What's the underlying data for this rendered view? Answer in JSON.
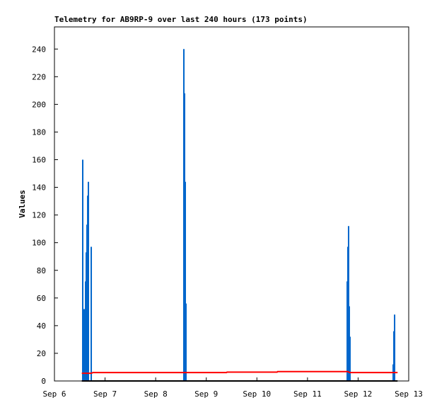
{
  "chart_data": {
    "type": "line",
    "title": "Telemetry for AB9RP-9 over last 240 hours (173 points)",
    "ylabel": "Values",
    "xlim": [
      6,
      13
    ],
    "xticks": [
      {
        "value": 6,
        "label": "Sep 6"
      },
      {
        "value": 7,
        "label": "Sep 7"
      },
      {
        "value": 8,
        "label": "Sep 8"
      },
      {
        "value": 9,
        "label": "Sep 9"
      },
      {
        "value": 10,
        "label": "Sep 10"
      },
      {
        "value": 11,
        "label": "Sep 11"
      },
      {
        "value": 12,
        "label": "Sep 12"
      },
      {
        "value": 13,
        "label": "Sep 13"
      }
    ],
    "ylim": [
      0,
      256
    ],
    "yticks": [
      0,
      20,
      40,
      60,
      80,
      100,
      120,
      140,
      160,
      180,
      200,
      220,
      240
    ],
    "series": [
      {
        "color": "#0066cc",
        "style": "impulse",
        "x": [
          6.559,
          6.573,
          6.587,
          6.615,
          6.629,
          6.643,
          6.657,
          6.671,
          6.727,
          8.557,
          8.571,
          8.585,
          8.599,
          11.785,
          11.798,
          11.812,
          11.826,
          11.84,
          12.693,
          12.707,
          12.721
        ],
        "values": [
          160,
          31,
          52,
          72,
          93,
          113,
          134,
          144,
          97,
          240,
          208,
          144,
          56,
          72,
          97,
          112,
          54,
          32,
          12,
          36,
          48
        ]
      },
      {
        "color": "#ff0000",
        "style": "line",
        "x": [
          6.54,
          6.73,
          6.76,
          9.4,
          9.41,
          10.4,
          10.41,
          11.8,
          11.83,
          12.78
        ],
        "values": [
          5.6,
          5.6,
          6.1,
          6.1,
          6.4,
          6.4,
          6.8,
          6.8,
          6.1,
          6.1
        ]
      },
      {
        "color": "#000000",
        "style": "line",
        "x": [
          6.54,
          12.78
        ],
        "values": [
          0,
          0
        ]
      }
    ]
  }
}
